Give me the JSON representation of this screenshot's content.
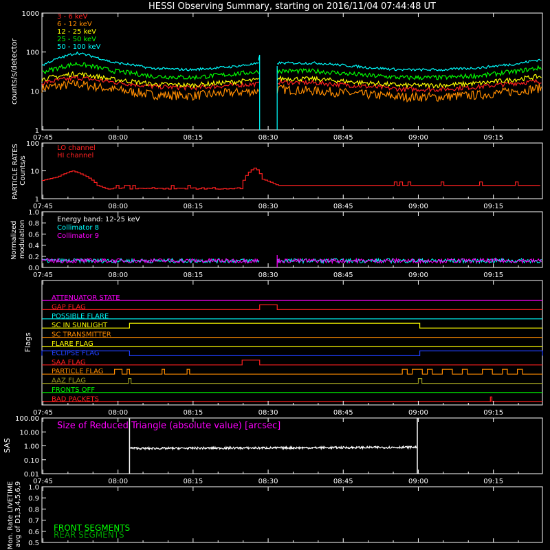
{
  "title": "HESSI Observing Summary, starting on 2016/11/04 07:44:48 UT",
  "colors": {
    "background": "#000000",
    "axes": "#ffffff",
    "band_3_6": "#ff2020",
    "band_6_12": "#ff8c00",
    "band_12_25": "#ffff00",
    "band_25_50": "#00ff00",
    "band_50_100": "#00ffff",
    "magenta": "#ff00ff",
    "particle": "#ff2020"
  },
  "time_ticks": [
    "07:45",
    "08:00",
    "08:15",
    "08:30",
    "08:45",
    "09:00",
    "09:15"
  ],
  "chart_data": [
    {
      "id": "count_rates",
      "type": "line",
      "ylabel": "counts/s/detector",
      "yscale": "log",
      "ylim": [
        1,
        1000
      ],
      "y_ticks": [
        "1",
        "10",
        "100",
        "1000"
      ],
      "x_unit": "minutes after 07:44:48 UT",
      "xlim": [
        0,
        100
      ],
      "gap": [
        43.5,
        47.0
      ],
      "series": [
        {
          "name": "3 - 6  keV",
          "color": "#ff2020",
          "x": [
            0,
            7,
            14,
            22,
            30,
            38,
            43,
            47,
            55,
            65,
            72,
            80,
            88,
            95,
            100
          ],
          "y": [
            16,
            22,
            17,
            13,
            12,
            14,
            15,
            17,
            16,
            13,
            11,
            11,
            13,
            16,
            18
          ]
        },
        {
          "name": "6 - 12  keV",
          "color": "#ff8c00",
          "x": [
            0,
            7,
            14,
            22,
            30,
            38,
            43,
            47,
            55,
            65,
            72,
            80,
            88,
            95,
            100
          ],
          "y": [
            12,
            15,
            11,
            8,
            7.5,
            9,
            10,
            11,
            10,
            8,
            7,
            7,
            8,
            10,
            12
          ]
        },
        {
          "name": "12 - 25  keV",
          "color": "#ffff00",
          "x": [
            0,
            7,
            14,
            22,
            30,
            38,
            43,
            47,
            55,
            65,
            72,
            80,
            88,
            95,
            100
          ],
          "y": [
            20,
            28,
            20,
            15,
            14,
            17,
            19,
            21,
            20,
            16,
            14,
            14,
            16,
            20,
            24
          ]
        },
        {
          "name": "25 - 50  keV",
          "color": "#00ff00",
          "x": [
            0,
            7,
            14,
            22,
            30,
            38,
            43,
            47,
            55,
            65,
            72,
            80,
            88,
            95,
            100
          ],
          "y": [
            30,
            50,
            33,
            24,
            22,
            27,
            31,
            33,
            32,
            25,
            22,
            22,
            25,
            32,
            40
          ]
        },
        {
          "name": "50 - 100  keV",
          "color": "#00ffff",
          "x": [
            0,
            7,
            14,
            22,
            30,
            38,
            43,
            47,
            55,
            65,
            72,
            80,
            88,
            95,
            100
          ],
          "y": [
            45,
            95,
            55,
            38,
            35,
            42,
            50,
            52,
            52,
            40,
            35,
            35,
            40,
            50,
            65
          ]
        }
      ]
    },
    {
      "id": "particle_rates",
      "type": "line",
      "ylabel": "PARTICLE RATES Counts/s",
      "yscale": "log",
      "ylim": [
        1,
        100
      ],
      "y_ticks": [
        "1",
        "10",
        "100"
      ],
      "series": [
        {
          "name": "LO channel",
          "color": "#ff2020",
          "x": [],
          "y": []
        },
        {
          "name": "HI channel",
          "color": "#ff2020",
          "x": [
            0,
            3,
            6,
            9,
            11,
            13,
            17,
            30,
            40,
            41.5,
            42.5,
            44,
            47,
            60,
            80,
            100
          ],
          "y": [
            4.5,
            6,
            10,
            6,
            3,
            2.2,
            2.5,
            2.8,
            4,
            10,
            13,
            5,
            3,
            3,
            3,
            3
          ]
        }
      ]
    },
    {
      "id": "modulation",
      "type": "line",
      "ylabel": "Normalized modulation",
      "ylim": [
        0,
        1
      ],
      "y_ticks": [
        "0.0",
        "0.2",
        "0.4",
        "0.6",
        "0.8",
        "1.0"
      ],
      "annotation": "Energy band: 12-25 keV",
      "gap": [
        43.5,
        47.0
      ],
      "series": [
        {
          "name": "Collimator 8",
          "color": "#00ffff",
          "level": 0.12
        },
        {
          "name": "Collimator 9",
          "color": "#ff00ff",
          "level": 0.12
        }
      ]
    },
    {
      "id": "flags",
      "type": "line",
      "ylabel": "Flags",
      "flags": [
        {
          "name": "ATTENUATOR STATE",
          "color": "#ff00ff",
          "on": []
        },
        {
          "name": "GAP FLAG",
          "color": "#ff2020",
          "on": [
            [
              43.5,
              47.0
            ]
          ]
        },
        {
          "name": "POSSIBLE FLARE",
          "color": "#00ffff",
          "on": []
        },
        {
          "name": "SC IN SUNLIGHT",
          "color": "#ffff00",
          "on": [
            [
              17.5,
              75.5
            ]
          ]
        },
        {
          "name": "SC TRANSMITTER",
          "color": "#ff8c00",
          "on": []
        },
        {
          "name": "FLARE FLAG",
          "color": "#ffff00",
          "on": []
        },
        {
          "name": "ECLIPSE FLAG",
          "color": "#2040ff",
          "on": [
            [
              0,
              17.5
            ],
            [
              75.5,
              100
            ]
          ]
        },
        {
          "name": "SAA FLAG",
          "color": "#ff2020",
          "on": [
            [
              40,
              43.5
            ]
          ]
        },
        {
          "name": "PARTICLE FLAG",
          "color": "#ff8c00",
          "on": [
            [
              14.5,
              16
            ],
            [
              17,
              17.5
            ],
            [
              24,
              24.5
            ],
            [
              29,
              29.5
            ],
            [
              72,
              73
            ],
            [
              74,
              76
            ],
            [
              77,
              78
            ],
            [
              80,
              82
            ],
            [
              84,
              85
            ],
            [
              88,
              90
            ],
            [
              92,
              93
            ],
            [
              95,
              96
            ]
          ]
        },
        {
          "name": "AAZ FLAG",
          "color": "#9a9a20",
          "on": [
            [
              17.3,
              17.8
            ],
            [
              75.2,
              75.9
            ]
          ]
        },
        {
          "name": "FRONTS OFF",
          "color": "#00ff00",
          "on": []
        },
        {
          "name": "BAD PACKETS",
          "color": "#ff2020",
          "on": [
            [
              89.6,
              89.9
            ]
          ]
        }
      ]
    },
    {
      "id": "sas",
      "type": "line",
      "ylabel": "SAS",
      "yscale": "log",
      "ylim": [
        0.01,
        100
      ],
      "y_ticks": [
        "0.01",
        "0.10",
        "1.00",
        "10.00",
        "100.00"
      ],
      "title": "Size of Reduced Triangle (absolute value) [arcsec]",
      "series": [
        {
          "name": "Size of Reduced Triangle (absolute value) [arcsec]",
          "color": "#ffffff",
          "x": [
            17.5,
            20,
            30,
            40,
            50,
            60,
            70,
            75
          ],
          "y": [
            0.7,
            0.65,
            0.68,
            0.7,
            0.72,
            0.75,
            0.78,
            0.8
          ]
        }
      ]
    },
    {
      "id": "livetime",
      "type": "line",
      "ylabel": "Mon. Rate LIVETIME avg of D1,3,4,5,6,9",
      "ylim": [
        0.5,
        1.0
      ],
      "y_ticks": [
        "0.5",
        "0.6",
        "0.7",
        "0.8",
        "0.9",
        "1.0"
      ],
      "series": [
        {
          "name": "FRONT SEGMENTS",
          "color": "#00ff00",
          "x": [],
          "y": []
        },
        {
          "name": "REAR SEGMENTS",
          "color": "#00a000",
          "x": [],
          "y": []
        }
      ]
    }
  ]
}
